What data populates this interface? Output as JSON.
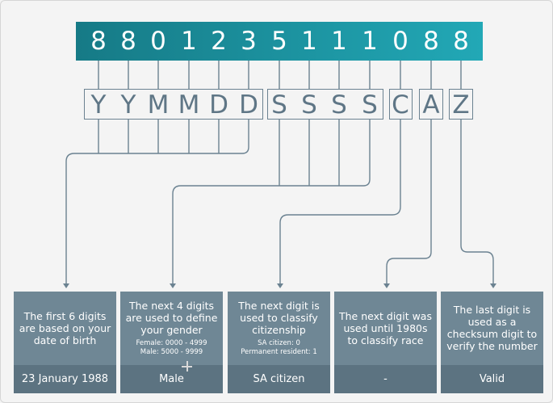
{
  "digits": [
    "8",
    "8",
    "0",
    "1",
    "2",
    "3",
    "5",
    "1",
    "1",
    "1",
    "0",
    "8",
    "8"
  ],
  "code_letters": [
    "Y",
    "Y",
    "M",
    "M",
    "D",
    "D",
    "S",
    "S",
    "S",
    "S",
    "C",
    "A",
    "Z"
  ],
  "cards": [
    {
      "description": "The first 6 digits are based on your date of birth",
      "result": "23 January 1988"
    },
    {
      "description": "The next 4 digits are used to define your gender",
      "notes": [
        "Female: 0000 - 4999",
        "Male: 5000 - 9999"
      ],
      "result": "Male"
    },
    {
      "description": "The next digit is used to classify citizenship",
      "notes": [
        "SA citizen: 0",
        "Permanent resident: 1"
      ],
      "result": "SA citizen"
    },
    {
      "description": "The next digit was used until 1980s to classify race",
      "result": "-"
    },
    {
      "description": "The last digit is used as a checksum digit to verify the number",
      "result": "Valid"
    }
  ],
  "colors": {
    "bar_start": "#167a86",
    "bar_end": "#22a8b6",
    "card": "#6f8795",
    "card_footer": "#5c7381",
    "line": "#6b8291"
  }
}
